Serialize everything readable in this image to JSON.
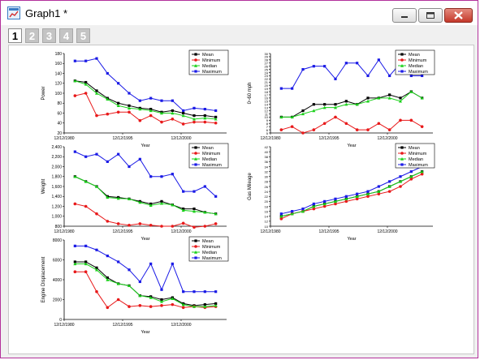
{
  "window": {
    "title": "Graph1 *"
  },
  "layer_tabs": [
    {
      "label": "1",
      "active": true
    },
    {
      "label": "2",
      "active": false
    },
    {
      "label": "3",
      "active": false
    },
    {
      "label": "4",
      "active": false
    },
    {
      "label": "5",
      "active": false
    }
  ],
  "colors": {
    "Mean": "#000000",
    "Minimum": "#e8191a",
    "Median": "#19d019",
    "Maximum": "#1a1ae6",
    "window_border": "#b3309b",
    "close_button": "#c4382a"
  },
  "chart_data": [
    {
      "type": "line",
      "ylabel": "Power",
      "xlabel": "Year",
      "x_ticks": [
        "12/12/1980",
        "12/12/1995",
        "12/12/2000"
      ],
      "y_ticks": [
        "20",
        "40",
        "60",
        "80",
        "100",
        "120",
        "140",
        "160",
        "180"
      ],
      "ylim": [
        20,
        180
      ],
      "x": [
        1,
        2,
        3,
        4,
        5,
        6,
        7,
        8,
        9,
        10,
        11,
        12,
        13,
        14
      ],
      "series": [
        {
          "name": "Mean",
          "values": [
            125,
            122,
            105,
            90,
            80,
            75,
            70,
            68,
            62,
            65,
            60,
            55,
            55,
            52
          ]
        },
        {
          "name": "Minimum",
          "values": [
            95,
            100,
            55,
            58,
            62,
            62,
            45,
            55,
            42,
            48,
            38,
            42,
            42,
            40
          ]
        },
        {
          "name": "Median",
          "values": [
            125,
            118,
            100,
            88,
            75,
            70,
            68,
            65,
            60,
            60,
            55,
            48,
            50,
            48
          ]
        },
        {
          "name": "Maximum",
          "values": [
            165,
            165,
            170,
            140,
            120,
            100,
            85,
            90,
            85,
            85,
            65,
            70,
            68,
            65
          ]
        }
      ]
    },
    {
      "type": "line",
      "ylabel": "0~60 mph",
      "xlabel": "Year",
      "x_ticks": [
        "12/12/1980",
        "12/12/1995",
        "12/12/2000"
      ],
      "y_ticks": [
        "5",
        "6",
        "7",
        "8",
        "9",
        "10",
        "11",
        "12",
        "13",
        "14",
        "15",
        "16",
        "17",
        "18",
        "19",
        "20",
        "21",
        "22",
        "23",
        "24",
        "25",
        "26",
        "27",
        "28",
        "29",
        "30"
      ],
      "ylim": [
        5,
        30
      ],
      "x": [
        1,
        2,
        3,
        4,
        5,
        6,
        7,
        8,
        9,
        10,
        11,
        12,
        13,
        14
      ],
      "series": [
        {
          "name": "Mean",
          "values": [
            10,
            10,
            12,
            14,
            14,
            14,
            15,
            14,
            16,
            16,
            17,
            16,
            18,
            16
          ]
        },
        {
          "name": "Minimum",
          "values": [
            6,
            7,
            5,
            6,
            8,
            10,
            8,
            6,
            6,
            8,
            6,
            9,
            9,
            7
          ]
        },
        {
          "name": "Median",
          "values": [
            10,
            10,
            11,
            12,
            13,
            13,
            14,
            14,
            15,
            16,
            16,
            15,
            18,
            16
          ]
        },
        {
          "name": "Maximum",
          "values": [
            19,
            19,
            25,
            26,
            26,
            22,
            27,
            27,
            23,
            28,
            23,
            27,
            23,
            23
          ]
        }
      ]
    },
    {
      "type": "line",
      "ylabel": "Weight",
      "xlabel": "Year",
      "x_ticks": [
        "12/12/1980",
        "12/12/1995",
        "12/12/2000"
      ],
      "y_ticks": [
        "800",
        "1,000",
        "1,200",
        "1,400",
        "1,600",
        "1,800",
        "2,000",
        "2,200",
        "2,400"
      ],
      "ylim": [
        800,
        2400
      ],
      "x": [
        1,
        2,
        3,
        4,
        5,
        6,
        7,
        8,
        9,
        10,
        11,
        12,
        13,
        14
      ],
      "series": [
        {
          "name": "Mean",
          "values": [
            1800,
            1700,
            1600,
            1400,
            1380,
            1350,
            1300,
            1250,
            1300,
            1230,
            1150,
            1150,
            1080,
            1050
          ]
        },
        {
          "name": "Minimum",
          "values": [
            1250,
            1200,
            1050,
            900,
            850,
            820,
            850,
            820,
            800,
            800,
            860,
            780,
            800,
            850
          ]
        },
        {
          "name": "Median",
          "values": [
            1800,
            1700,
            1600,
            1380,
            1360,
            1350,
            1280,
            1220,
            1260,
            1230,
            1120,
            1100,
            1080,
            1050
          ]
        },
        {
          "name": "Maximum",
          "values": [
            2300,
            2200,
            2250,
            2100,
            2250,
            2000,
            2150,
            1800,
            1800,
            1850,
            1500,
            1500,
            1600,
            1400
          ]
        }
      ]
    },
    {
      "type": "line",
      "ylabel": "Gas Mileage",
      "xlabel": "Year",
      "x_ticks": [
        "12/12/1980",
        "12/12/1995",
        "12/12/2000"
      ],
      "y_ticks": [
        "10",
        "12",
        "14",
        "16",
        "18",
        "20",
        "22",
        "24",
        "26",
        "28",
        "30",
        "32",
        "34",
        "36",
        "38",
        "40",
        "42"
      ],
      "ylim": [
        10,
        42
      ],
      "x": [
        1,
        2,
        3,
        4,
        5,
        6,
        7,
        8,
        9,
        10,
        11,
        12,
        13,
        14
      ],
      "series": [
        {
          "name": "Mean",
          "values": [
            14,
            15,
            16,
            18,
            19,
            20,
            21,
            22,
            23,
            24,
            26,
            28,
            30,
            32
          ]
        },
        {
          "name": "Minimum",
          "values": [
            13,
            15,
            16,
            17,
            18,
            19,
            20,
            21,
            22,
            23,
            24,
            26,
            29,
            31
          ]
        },
        {
          "name": "Median",
          "values": [
            14,
            15,
            16,
            18,
            19,
            20,
            21,
            22,
            23,
            24,
            26,
            28,
            30,
            32
          ]
        },
        {
          "name": "Maximum",
          "values": [
            15,
            16,
            17,
            19,
            20,
            21,
            22,
            23,
            24,
            26,
            28,
            30,
            32,
            34
          ]
        }
      ]
    },
    {
      "type": "line",
      "ylabel": "Engine Displacement",
      "xlabel": "Year",
      "x_ticks": [
        "12/12/1980",
        "12/12/1995",
        "12/12/2000"
      ],
      "y_ticks": [
        "0",
        "2000",
        "4000",
        "6000",
        "8000"
      ],
      "ylim": [
        0,
        8000
      ],
      "x": [
        1,
        2,
        3,
        4,
        5,
        6,
        7,
        8,
        9,
        10,
        11,
        12,
        13,
        14
      ],
      "series": [
        {
          "name": "Mean",
          "values": [
            5800,
            5800,
            5200,
            4200,
            3600,
            3400,
            2400,
            2300,
            2000,
            2200,
            1600,
            1400,
            1500,
            1600
          ]
        },
        {
          "name": "Minimum",
          "values": [
            4800,
            4800,
            2800,
            1200,
            2000,
            1300,
            1400,
            1300,
            1400,
            1500,
            1200,
            1300,
            1200,
            1300
          ]
        },
        {
          "name": "Median",
          "values": [
            5600,
            5600,
            5000,
            4000,
            3600,
            3400,
            2400,
            2200,
            1800,
            2100,
            1500,
            1300,
            1300,
            1400
          ]
        },
        {
          "name": "Maximum",
          "values": [
            7400,
            7400,
            7000,
            6400,
            5800,
            5000,
            3800,
            5600,
            3000,
            5600,
            2800,
            2800,
            2800,
            2800
          ]
        }
      ]
    }
  ]
}
